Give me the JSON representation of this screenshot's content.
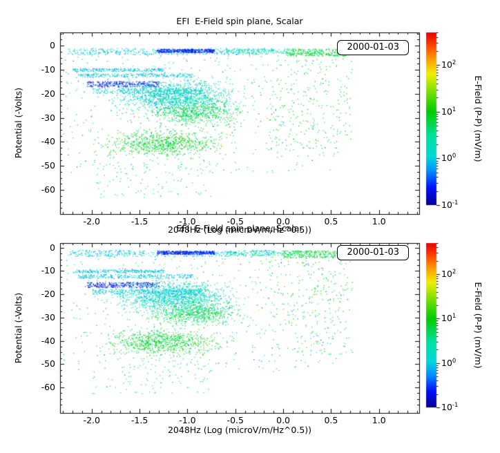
{
  "figure": {
    "background": "#ffffff",
    "date_label": "2000-01-03"
  },
  "chart_data": [
    {
      "type": "scatter",
      "title": "EFI  E-Field spin plane, Scalar",
      "xlabel": "2048Hz (Log (microV/m/Hz^0.5))",
      "ylabel": "Potential (-Volts)",
      "legend_label": "2000-01-03",
      "xlim": [
        -2.33,
        1.42
      ],
      "ylim": [
        -70,
        5.5
      ],
      "xticks": [
        "-2.0",
        "-1.5",
        "-1.0",
        "-0.5",
        "0.0",
        "0.5",
        "1.0"
      ],
      "xtick_values": [
        -2.0,
        -1.5,
        -1.0,
        -0.5,
        0.0,
        0.5,
        1.0
      ],
      "yticks": [
        "0",
        "-10",
        "-20",
        "-30",
        "-40",
        "-50",
        "-60"
      ],
      "ytick_values": [
        0,
        -10,
        -20,
        -30,
        -40,
        -50,
        -60
      ],
      "grid": false,
      "marker_size": 1.3,
      "seed": 13,
      "colorbar": {
        "label": "E-Field (P-P) (mV/m)",
        "scale": "log",
        "range": [
          0.1,
          500
        ],
        "tick_exponents": [
          2,
          1,
          0,
          -1
        ],
        "stops": [
          {
            "t": 0.0,
            "c": "#00008f"
          },
          {
            "t": 0.1,
            "c": "#0010ff"
          },
          {
            "t": 0.2,
            "c": "#0090ff"
          },
          {
            "t": 0.28,
            "c": "#00d8d8"
          },
          {
            "t": 0.4,
            "c": "#00e0a0"
          },
          {
            "t": 0.54,
            "c": "#00cc00"
          },
          {
            "t": 0.66,
            "c": "#7be000"
          },
          {
            "t": 0.76,
            "c": "#f0f000"
          },
          {
            "t": 0.85,
            "c": "#ff9800"
          },
          {
            "t": 0.93,
            "c": "#ff3c00"
          },
          {
            "t": 1.0,
            "c": "#e40000"
          }
        ]
      },
      "clusters": [
        {
          "n": 420,
          "x": [
            -2.25,
            -0.1
          ],
          "y": [
            -3.6,
            -0.9
          ],
          "v": [
            0.5,
            2.5
          ]
        },
        {
          "n": 380,
          "x": [
            -1.32,
            -0.72
          ],
          "y": [
            -2.7,
            -1.3
          ],
          "v": [
            0.12,
            0.45
          ]
        },
        {
          "n": 300,
          "x": [
            0.0,
            0.68
          ],
          "y": [
            -4.2,
            -1.1
          ],
          "v": [
            3,
            14
          ]
        },
        {
          "n": 120,
          "x": [
            -0.6,
            0.1
          ],
          "y": [
            -3.2,
            -1.2
          ],
          "v": [
            1,
            6
          ]
        },
        {
          "n": 240,
          "x": [
            -2.2,
            -1.25
          ],
          "y": [
            -10.6,
            -9.3
          ],
          "v": [
            0.5,
            2
          ]
        },
        {
          "n": 260,
          "x": [
            -2.15,
            -0.95
          ],
          "y": [
            -13.0,
            -11.3
          ],
          "v": [
            0.5,
            2
          ]
        },
        {
          "n": 280,
          "x": [
            -2.05,
            -1.3
          ],
          "y": [
            -17.0,
            -14.7
          ],
          "v": [
            0.1,
            0.5
          ]
        },
        {
          "n": 240,
          "x": [
            -2.0,
            -0.85
          ],
          "y": [
            -19.8,
            -17.6
          ],
          "v": [
            0.5,
            2.5
          ]
        },
        {
          "n": 1350,
          "x": [
            -1.95,
            -0.35
          ],
          "y": [
            -30,
            -12
          ],
          "v": [
            0.6,
            4
          ],
          "gauss": true
        },
        {
          "n": 620,
          "x": [
            -1.55,
            -0.3
          ],
          "y": [
            -35,
            -21
          ],
          "v": [
            2.5,
            12
          ],
          "gauss": true
        },
        {
          "n": 780,
          "x": [
            -2.05,
            -0.5
          ],
          "y": [
            -48,
            -33
          ],
          "v": [
            3,
            20
          ],
          "gauss": true
        },
        {
          "n": 210,
          "x": [
            -0.15,
            0.72
          ],
          "y": [
            -46,
            -5
          ],
          "v": [
            3,
            15
          ]
        },
        {
          "n": 480,
          "x": [
            -2.3,
            0.6
          ],
          "y": [
            -53,
            -2
          ],
          "v": [
            0.3,
            25
          ]
        },
        {
          "n": 100,
          "x": [
            -2.0,
            -0.75
          ],
          "y": [
            -63,
            -47
          ],
          "v": [
            1,
            10
          ]
        },
        {
          "n": 30,
          "x": [
            -1.7,
            0.4
          ],
          "y": [
            -42,
            -4
          ],
          "v": [
            60,
            350
          ]
        }
      ]
    },
    {
      "type": "scatter",
      "title": "EFI  E-Field spin plane, Scalar",
      "xlabel": "2048Hz (Log (microV/m/Hz^0.5))",
      "ylabel": "Potential (-Volts)",
      "legend_label": "2000-01-03",
      "xlim": [
        -2.33,
        1.42
      ],
      "ylim": [
        -71,
        2
      ],
      "xticks": [
        "-2.0",
        "-1.5",
        "-1.0",
        "-0.5",
        "0.0",
        "0.5",
        "1.0"
      ],
      "xtick_values": [
        -2.0,
        -1.5,
        -1.0,
        -0.5,
        0.0,
        0.5,
        1.0
      ],
      "yticks": [
        "0",
        "-10",
        "-20",
        "-30",
        "-40",
        "-50",
        "-60"
      ],
      "ytick_values": [
        0,
        -10,
        -20,
        -30,
        -40,
        -50,
        -60
      ],
      "grid": false,
      "marker_size": 1.3,
      "seed": 47,
      "colorbar": {
        "label": "E-Field (P-P) (mV/m)",
        "scale": "log",
        "range": [
          0.1,
          500
        ],
        "tick_exponents": [
          2,
          1,
          0,
          -1
        ],
        "stops": [
          {
            "t": 0.0,
            "c": "#00008f"
          },
          {
            "t": 0.1,
            "c": "#0010ff"
          },
          {
            "t": 0.2,
            "c": "#0090ff"
          },
          {
            "t": 0.28,
            "c": "#00d8d8"
          },
          {
            "t": 0.4,
            "c": "#00e0a0"
          },
          {
            "t": 0.54,
            "c": "#00cc00"
          },
          {
            "t": 0.66,
            "c": "#7be000"
          },
          {
            "t": 0.76,
            "c": "#f0f000"
          },
          {
            "t": 0.85,
            "c": "#ff9800"
          },
          {
            "t": 0.93,
            "c": "#ff3c00"
          },
          {
            "t": 1.0,
            "c": "#e40000"
          }
        ]
      },
      "clusters": [
        {
          "n": 420,
          "x": [
            -2.25,
            -0.1
          ],
          "y": [
            -3.6,
            -0.9
          ],
          "v": [
            0.5,
            2.5
          ]
        },
        {
          "n": 380,
          "x": [
            -1.32,
            -0.72
          ],
          "y": [
            -2.7,
            -1.3
          ],
          "v": [
            0.12,
            0.45
          ]
        },
        {
          "n": 300,
          "x": [
            0.0,
            0.68
          ],
          "y": [
            -4.2,
            -1.1
          ],
          "v": [
            3,
            14
          ]
        },
        {
          "n": 120,
          "x": [
            -0.6,
            0.1
          ],
          "y": [
            -3.2,
            -1.2
          ],
          "v": [
            1,
            6
          ]
        },
        {
          "n": 240,
          "x": [
            -2.2,
            -1.25
          ],
          "y": [
            -10.6,
            -9.3
          ],
          "v": [
            0.5,
            2
          ]
        },
        {
          "n": 260,
          "x": [
            -2.15,
            -0.95
          ],
          "y": [
            -13.0,
            -11.3
          ],
          "v": [
            0.5,
            2
          ]
        },
        {
          "n": 280,
          "x": [
            -2.05,
            -1.3
          ],
          "y": [
            -17.0,
            -14.7
          ],
          "v": [
            0.1,
            0.5
          ]
        },
        {
          "n": 240,
          "x": [
            -2.0,
            -0.85
          ],
          "y": [
            -19.8,
            -17.6
          ],
          "v": [
            0.5,
            2.5
          ]
        },
        {
          "n": 1350,
          "x": [
            -1.95,
            -0.35
          ],
          "y": [
            -30,
            -12
          ],
          "v": [
            0.6,
            4
          ],
          "gauss": true
        },
        {
          "n": 620,
          "x": [
            -1.55,
            -0.3
          ],
          "y": [
            -35,
            -21
          ],
          "v": [
            2.5,
            12
          ],
          "gauss": true
        },
        {
          "n": 780,
          "x": [
            -2.05,
            -0.5
          ],
          "y": [
            -48,
            -33
          ],
          "v": [
            3,
            20
          ],
          "gauss": true
        },
        {
          "n": 210,
          "x": [
            -0.15,
            0.72
          ],
          "y": [
            -46,
            -5
          ],
          "v": [
            3,
            15
          ]
        },
        {
          "n": 480,
          "x": [
            -2.3,
            0.6
          ],
          "y": [
            -53,
            -2
          ],
          "v": [
            0.3,
            25
          ]
        },
        {
          "n": 100,
          "x": [
            -2.0,
            -0.75
          ],
          "y": [
            -63,
            -47
          ],
          "v": [
            1,
            10
          ]
        },
        {
          "n": 30,
          "x": [
            -1.7,
            0.4
          ],
          "y": [
            -42,
            -4
          ],
          "v": [
            60,
            350
          ]
        }
      ]
    }
  ]
}
